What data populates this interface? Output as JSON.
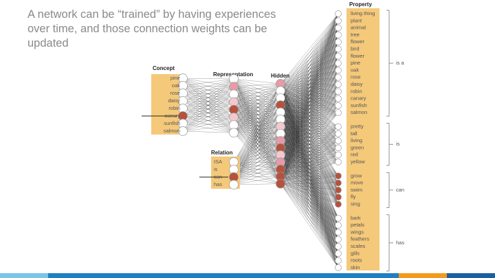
{
  "header": {
    "title": "A network can be “trained” by having experiences over time, and those connection weights can be updated"
  },
  "diagram": {
    "concept": {
      "label": "Concept",
      "items": [
        "pine",
        "oak",
        "rose",
        "daisy",
        "robin",
        "canary",
        "sunfish",
        "salmon"
      ]
    },
    "representation": {
      "label": "Representation"
    },
    "hidden": {
      "label": "Hidden"
    },
    "relation": {
      "label": "Relation",
      "items": [
        "ISA",
        "is",
        "can",
        "has"
      ]
    },
    "property": {
      "label": "Property",
      "groups": [
        {
          "label": "is a",
          "items": [
            "living thing",
            "plant",
            "animal",
            "tree",
            "flower",
            "bird",
            "flower",
            "pine",
            "oak",
            "rose",
            "daisy",
            "robin",
            "canary",
            "sunfish",
            "salmon"
          ]
        },
        {
          "label": "is",
          "items": [
            "pretty",
            "tall",
            "living",
            "green",
            "red",
            "yellow"
          ]
        },
        {
          "label": "can",
          "items": [
            "grow",
            "move",
            "swim",
            "fly",
            "sing"
          ]
        },
        {
          "label": "has",
          "items": [
            "bark",
            "petals",
            "wings",
            "feathers",
            "scales",
            "gills",
            "roots",
            "skin"
          ]
        }
      ]
    }
  }
}
